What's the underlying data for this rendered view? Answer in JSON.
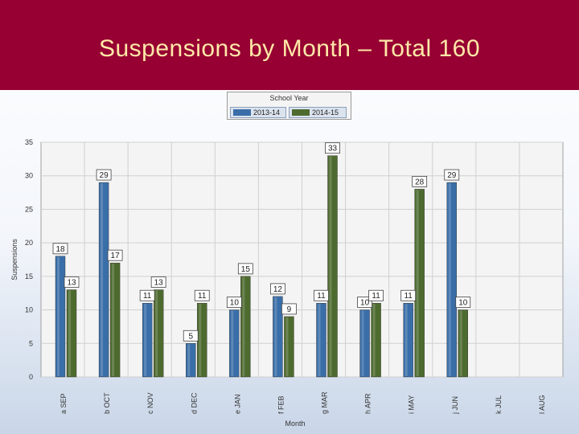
{
  "slide": {
    "title": "Suspensions by Month – Total 160"
  },
  "colors": {
    "header": "#960032",
    "title": "#ffe8a8",
    "series_2013_14": "#3a6ea8",
    "series_2014_15": "#4e6b2f"
  },
  "chart_data": {
    "type": "bar",
    "title": "",
    "xlabel": "Month",
    "ylabel": "Suspensions",
    "ylim": [
      0,
      35
    ],
    "yticks": [
      0,
      5,
      10,
      15,
      20,
      25,
      30,
      35
    ],
    "grid": true,
    "legend": {
      "title": "School Year",
      "placement": "top-center"
    },
    "categories": [
      "SEP",
      "OCT",
      "NOV",
      "DEC",
      "JAN",
      "FEB",
      "MAR",
      "APR",
      "MAY",
      "JUN",
      "JUL",
      "AUG"
    ],
    "category_prefixes": [
      "a",
      "b",
      "c",
      "d",
      "e",
      "f",
      "g",
      "h",
      "i",
      "j",
      "k",
      "l"
    ],
    "series": [
      {
        "name": "2013-14",
        "values": [
          18,
          29,
          11,
          5,
          10,
          12,
          11,
          10,
          11,
          29,
          null,
          null
        ]
      },
      {
        "name": "2014-15",
        "values": [
          13,
          17,
          13,
          11,
          15,
          9,
          33,
          11,
          28,
          10,
          null,
          null
        ]
      }
    ]
  }
}
